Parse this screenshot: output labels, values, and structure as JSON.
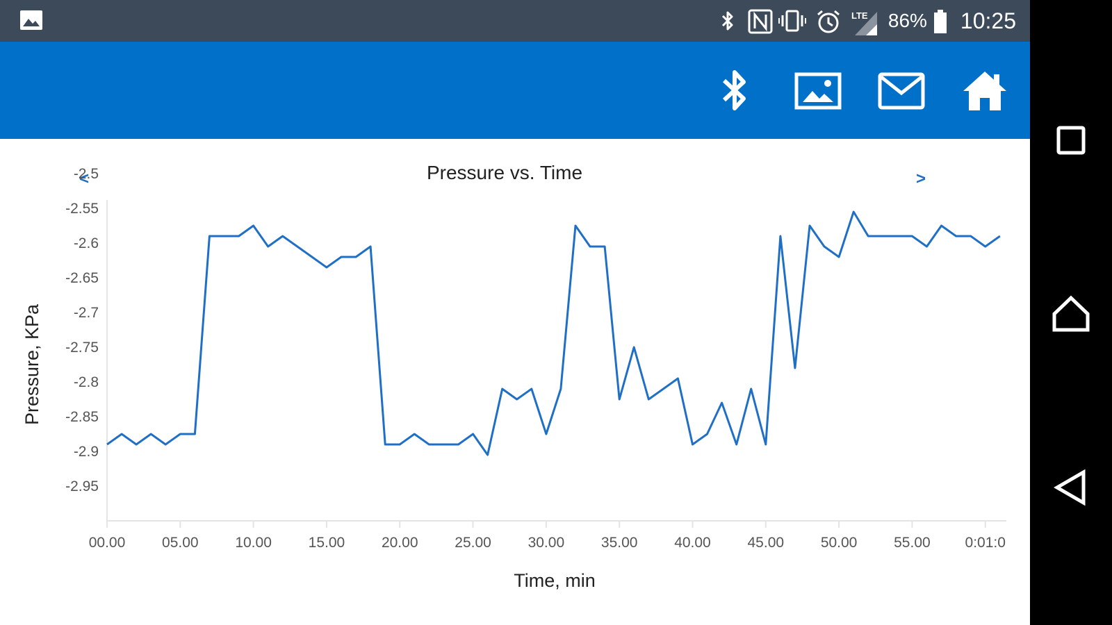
{
  "status_bar": {
    "left_icon": "image-notification-icon",
    "icons": [
      "bluetooth-icon",
      "nfc-icon",
      "vibrate-icon",
      "alarm-icon",
      "lte-signal-icon"
    ],
    "lte_label": "LTE",
    "battery_percent": "86%",
    "battery_level": 0.86,
    "time": "10:25"
  },
  "app_bar": {
    "background": "#0070c9",
    "actions": [
      {
        "name": "bluetooth-button",
        "icon": "bluetooth-icon"
      },
      {
        "name": "gallery-button",
        "icon": "image-icon"
      },
      {
        "name": "email-button",
        "icon": "mail-icon"
      },
      {
        "name": "home-button",
        "icon": "home-icon"
      }
    ]
  },
  "navigation": {
    "prev_label": "<",
    "next_label": ">"
  },
  "system_nav": {
    "buttons": [
      "recents-icon",
      "home-outline-icon",
      "back-icon"
    ]
  },
  "chart_data": {
    "type": "line",
    "title": "Pressure vs. Time",
    "xlabel": "Time, min",
    "ylabel": "Pressure, KPa",
    "xlim": [
      0,
      61.2
    ],
    "ylim": [
      -3.0,
      -2.5
    ],
    "x_ticks": [
      "00.00",
      "05.00",
      "10.00",
      "15.00",
      "20.00",
      "25.00",
      "30.00",
      "35.00",
      "40.00",
      "45.00",
      "50.00",
      "55.00",
      "0:01:0"
    ],
    "y_ticks": [
      "-2.5",
      "-2.55",
      "-2.6",
      "-2.65",
      "-2.7",
      "-2.75",
      "-2.8",
      "-2.85",
      "-2.9",
      "-2.95"
    ],
    "y_tick_values": [
      -2.5,
      -2.55,
      -2.6,
      -2.65,
      -2.7,
      -2.75,
      -2.8,
      -2.85,
      -2.9,
      -2.95
    ],
    "grid": false,
    "line_color": "#1f6fc6",
    "series": [
      {
        "x": [
          0,
          1,
          2,
          3,
          4,
          5,
          6,
          7,
          8,
          9,
          10,
          11,
          12,
          13,
          14,
          15,
          16,
          17,
          18,
          19,
          20,
          21,
          22,
          23,
          24,
          25,
          26,
          27,
          28,
          29,
          30,
          31,
          32,
          33,
          34,
          35,
          36,
          37,
          38,
          39,
          40,
          41,
          42,
          43,
          44,
          45,
          46,
          47,
          48,
          49,
          50,
          51,
          52,
          53,
          54,
          55,
          56,
          57,
          58,
          59,
          60,
          61
        ],
        "values": [
          -2.89,
          -2.875,
          -2.89,
          -2.875,
          -2.89,
          -2.875,
          -2.875,
          -2.59,
          -2.59,
          -2.59,
          -2.575,
          -2.605,
          -2.59,
          -2.605,
          -2.62,
          -2.635,
          -2.62,
          -2.62,
          -2.605,
          -2.89,
          -2.89,
          -2.875,
          -2.89,
          -2.89,
          -2.89,
          -2.875,
          -2.905,
          -2.81,
          -2.825,
          -2.81,
          -2.875,
          -2.81,
          -2.575,
          -2.605,
          -2.605,
          -2.825,
          -2.75,
          -2.825,
          -2.81,
          -2.795,
          -2.89,
          -2.875,
          -2.83,
          -2.89,
          -2.81,
          -2.89,
          -2.59,
          -2.78,
          -2.575,
          -2.605,
          -2.62,
          -2.555,
          -2.59,
          -2.59,
          -2.59,
          -2.59,
          -2.605,
          -2.575,
          -2.59,
          -2.59,
          -2.605,
          -2.59
        ]
      }
    ]
  }
}
